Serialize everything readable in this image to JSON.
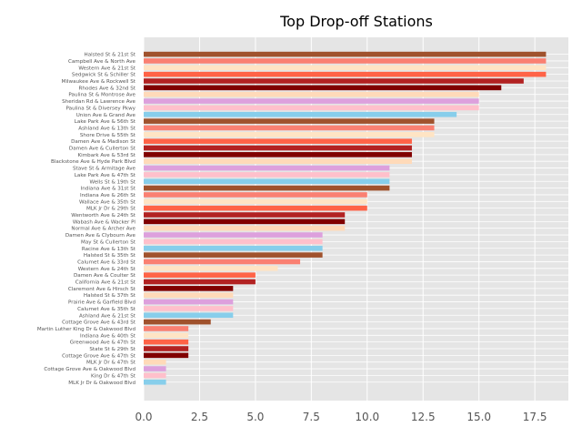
{
  "chart_data": {
    "type": "bar",
    "orientation": "horizontal",
    "title": "Top Drop-off Stations",
    "xlabel": "",
    "ylabel": "",
    "xlim": [
      0,
      19
    ],
    "xticks": [
      "0.0",
      "2.5",
      "5.0",
      "7.5",
      "10.0",
      "12.5",
      "15.0",
      "17.5"
    ],
    "grid": true,
    "legend": "none",
    "background": "#e5e5e5",
    "palette": [
      "#a0522d",
      "#fa8072",
      "#ffe4c4",
      "#ff6347",
      "#b22222",
      "#800000",
      "#ffdab9",
      "#dda0dd",
      "#ffc0cb",
      "#87ceeb"
    ],
    "categories": [
      "Halsted St & 21st St",
      "Campbell Ave & North Ave",
      "Western Ave & 21st St",
      "Sedgwick St & Schiller St",
      "Milwaukee Ave & Rockwell St",
      "Rhodes Ave & 32nd St",
      "Paulina St & Montrose Ave",
      "Sheridan Rd & Lawrence Ave",
      "Paulina St & Diversey Pkwy",
      "Union Ave & Grand Ave",
      "Lake Park Ave & 56th St",
      "Ashland Ave & 13th St",
      "Shore Drive & 55th St",
      "Damen Ave & Madison St",
      "Damen Ave & Cullerton St",
      "Kimbark Ave & 53rd St",
      "Blackstone Ave & Hyde Park Blvd",
      "Stave St & Armitage Ave",
      "Lake Park Ave & 47th St",
      "Wells St & 19th St",
      "Indiana Ave & 31st St",
      "Indiana Ave & 26th St",
      "Wallace Ave & 35th St",
      "MLK Jr Dr & 29th St",
      "Wentworth Ave & 24th St",
      "Wabash Ave & Wacker Pl",
      "Normal Ave & Archer Ave",
      "Damen Ave & Clybourn Ave",
      "May St & Cullerton St",
      "Racine Ave & 13th St",
      "Halsted St & 35th St",
      "Calumet Ave & 33rd St",
      "Western Ave & 24th St",
      "Damen Ave & Coulter St",
      "California Ave & 21st St",
      "Claremont Ave & Hirsch St",
      "Halsted St & 37th St",
      "Prairie Ave & Garfield Blvd",
      "Calumet Ave & 35th St",
      "Ashland Ave & 21st St",
      "Cottage Grove Ave & 43rd St",
      "Martin Luther King Dr & Oakwood Blvd",
      "Indiana Ave & 40th St",
      "Greenwood Ave & 47th St",
      "State St & 29th St",
      "Cottage Grove Ave & 47th St",
      "MLK Jr Dr & 47th St",
      "Cottage Grove Ave & Oakwood Blvd",
      "King Dr & 47th St",
      "MLK Jr Dr & Oakwood Blvd"
    ],
    "values": [
      18,
      18,
      18,
      18,
      17,
      16,
      15,
      15,
      15,
      14,
      13,
      13,
      13,
      12,
      12,
      12,
      12,
      11,
      11,
      11,
      11,
      10,
      10,
      10,
      9,
      9,
      9,
      8,
      8,
      8,
      8,
      7,
      6,
      5,
      5,
      4,
      4,
      4,
      4,
      4,
      3,
      2,
      2,
      2,
      2,
      2,
      1,
      1,
      1,
      1
    ]
  }
}
